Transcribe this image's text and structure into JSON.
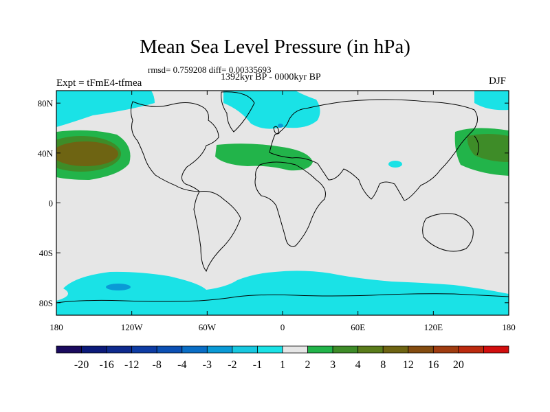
{
  "plot": {
    "title": "Mean Sea Level Pressure (in hPa)",
    "stats": "rmsd= 0.759208 diff= 0.00335693",
    "period": "1392kyr BP - 0000kyr BP",
    "experiment": "Expt = tFmE4-tfmea",
    "season": "DJF"
  },
  "axes": {
    "lat_labels": [
      "80N",
      "40N",
      "0",
      "40S",
      "80S"
    ],
    "lat_values": [
      80,
      40,
      0,
      -40,
      -80
    ],
    "lon_labels": [
      "180",
      "120W",
      "60W",
      "0",
      "60E",
      "120E",
      "180"
    ],
    "lon_values": [
      -180,
      -120,
      -60,
      0,
      60,
      120,
      180
    ],
    "lon_range": [
      -180,
      180
    ],
    "lat_range": [
      -90,
      90
    ]
  },
  "colorbar": {
    "labels": [
      "-20",
      "-16",
      "-12",
      "-8",
      "-4",
      "-3",
      "-2",
      "-1",
      "1",
      "2",
      "3",
      "4",
      "8",
      "12",
      "16",
      "20"
    ],
    "colors": [
      "#1a0a5e",
      "#0c1a7a",
      "#0e2a8e",
      "#0e3ca4",
      "#0c50b4",
      "#0a6ec6",
      "#0a9ad6",
      "#18c8e0",
      "#1ae2e6",
      "#e6e6e6",
      "#22b44a",
      "#3e8c28",
      "#5a7c1a",
      "#6e6412",
      "#844c10",
      "#a03c10",
      "#bc2a0e",
      "#d20e0e"
    ]
  },
  "colors": {
    "background": "#e6e6e6",
    "neg1": "#1ae2e6",
    "neg2": "#18c8e0",
    "neg3": "#0a9ad6",
    "pos1": "#22b44a",
    "pos2": "#3e8c28",
    "pos3": "#6e6412"
  }
}
